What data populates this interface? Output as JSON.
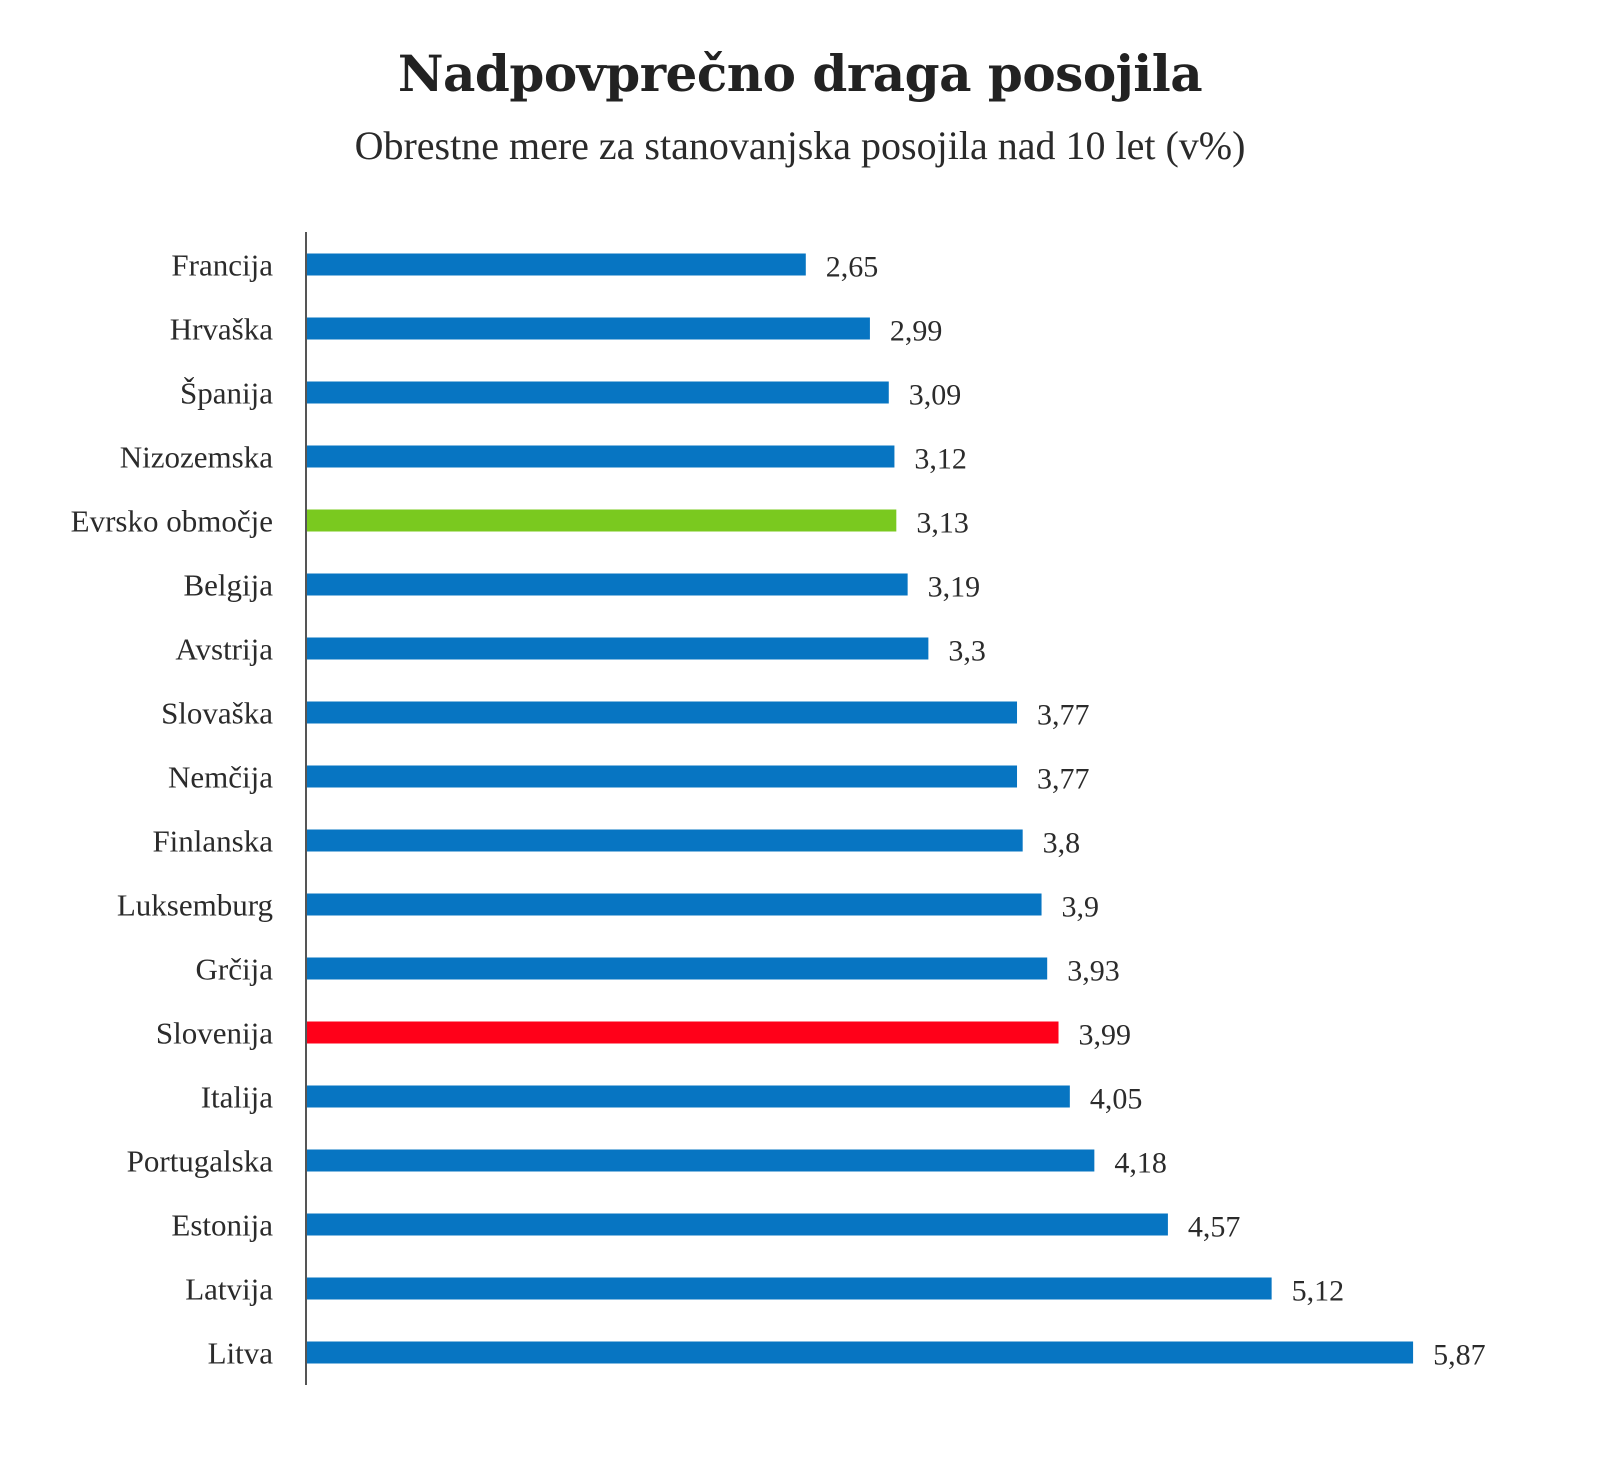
{
  "chart_data": {
    "type": "bar",
    "orientation": "horizontal",
    "title": "Nadpovprečno draga posojila",
    "subtitle": "Obrestne mere za stanovanjska posojila nad 10 let (v%)",
    "xlabel": "",
    "ylabel": "",
    "grid": false,
    "legend": "none",
    "xlim": [
      0,
      5.87
    ],
    "categories": [
      "Francija",
      "Hrvaška",
      "Španija",
      "Nizozemska",
      "Evrsko območje",
      "Belgija",
      "Avstrija",
      "Slovaška",
      "Nemčija",
      "Finlanska",
      "Luksemburg",
      "Grčija",
      "Slovenija",
      "Italija",
      "Portugalska",
      "Estonija",
      "Latvija",
      "Litva"
    ],
    "values": [
      2.65,
      2.99,
      3.09,
      3.12,
      3.13,
      3.19,
      3.3,
      3.77,
      3.77,
      3.8,
      3.9,
      3.93,
      3.99,
      4.05,
      4.18,
      4.57,
      5.12,
      5.87
    ],
    "value_labels": [
      "2,65",
      "2,99",
      "3,09",
      "3,12",
      "3,13",
      "3,19",
      "3,3",
      "3,77",
      "3,77",
      "3,8",
      "3,9",
      "3,93",
      "3,99",
      "4,05",
      "4,18",
      "4,57",
      "5,12",
      "5,87"
    ],
    "colors": {
      "default": "#0775c2",
      "highlights": {
        "Evrsko območje": "#7ac91f",
        "Slovenija": "#ff0019"
      },
      "axis": "#555555"
    }
  }
}
